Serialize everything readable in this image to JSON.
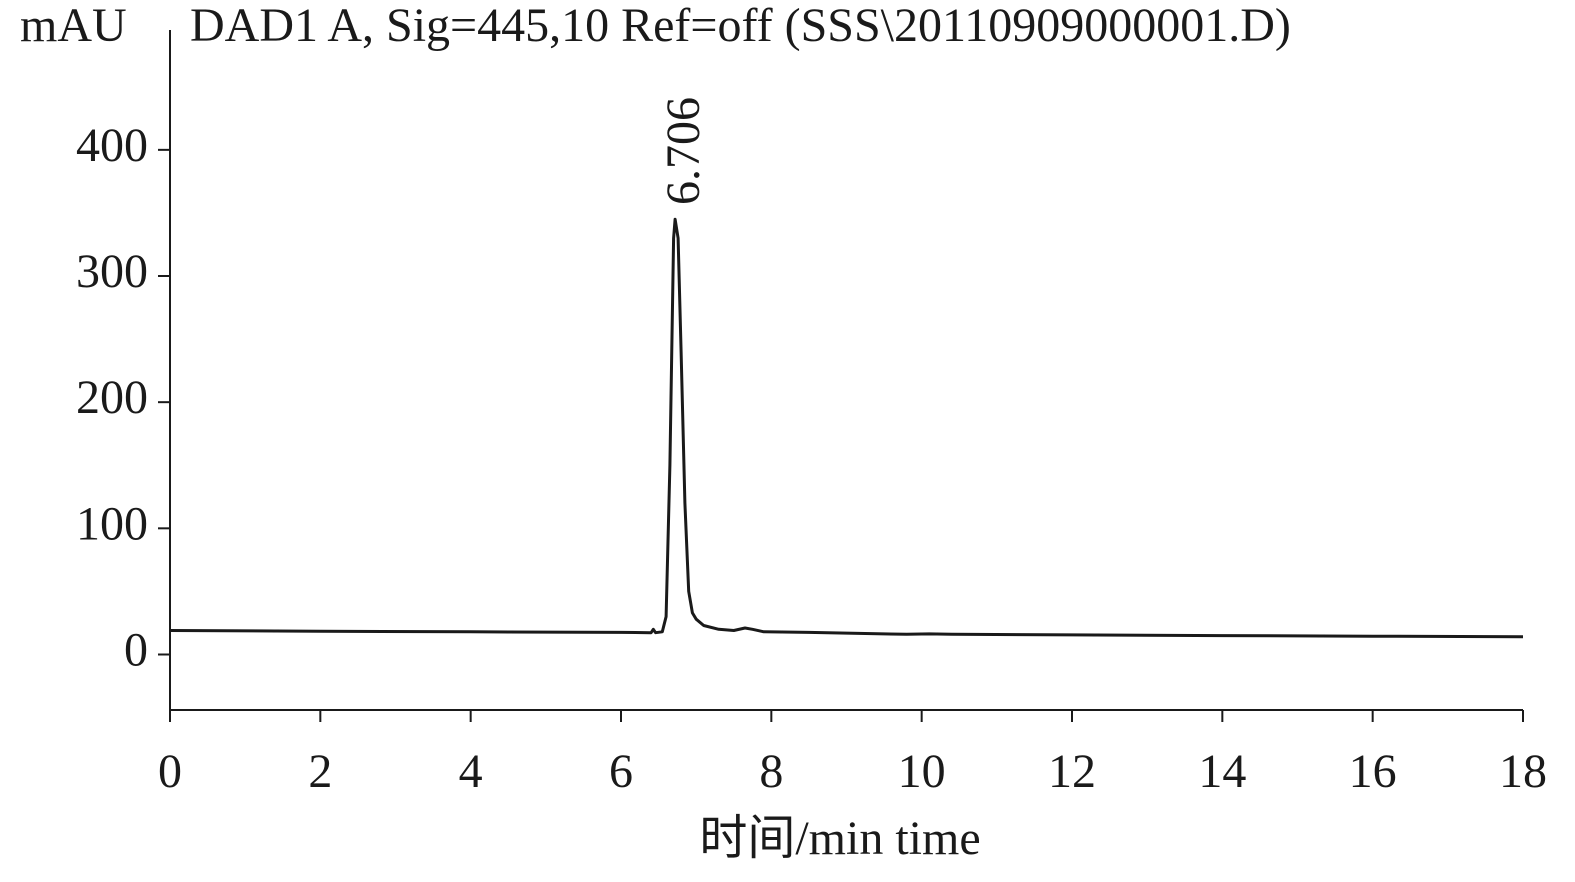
{
  "chart_data": {
    "type": "line",
    "title": "DAD1 A, Sig=445,10 Ref=off (SSS\\20110909000001.D)",
    "y_label": "mAU",
    "x_label": "时间/min time",
    "annotation": "6.706",
    "annotation_x": 6.706,
    "x": [
      0,
      2,
      4,
      6,
      6.4,
      6.43,
      6.46,
      6.55,
      6.6,
      6.65,
      6.7,
      6.72,
      6.76,
      6.8,
      6.85,
      6.9,
      6.95,
      7.0,
      7.1,
      7.3,
      7.5,
      7.65,
      7.75,
      7.9,
      8.5,
      9.8,
      10.1,
      10.4,
      12,
      14,
      16,
      18
    ],
    "values": [
      19,
      18.5,
      18,
      17.5,
      17.3,
      20,
      17.3,
      18,
      30,
      150,
      330,
      345,
      330,
      240,
      120,
      50,
      33,
      28,
      23,
      20,
      19,
      21,
      20,
      18,
      17.5,
      16,
      16.3,
      16,
      15.5,
      15,
      14.5,
      14
    ],
    "color": "#1a1a1a",
    "xlim": [
      0,
      18
    ],
    "xticks": [
      0,
      2,
      4,
      6,
      8,
      10,
      12,
      14,
      16,
      18
    ],
    "ylim": [
      -44,
      495
    ],
    "yticks": [
      0,
      100,
      200,
      300,
      400
    ],
    "grid": false
  }
}
